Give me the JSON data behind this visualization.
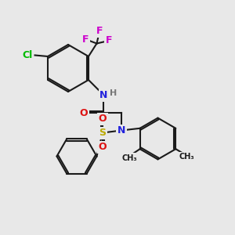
{
  "background_color": "#e8e8e8",
  "bond_color": "#1a1a1a",
  "bond_width": 1.5,
  "atom_colors": {
    "F": "#cc00cc",
    "Cl": "#00bb00",
    "N": "#2222dd",
    "O": "#dd1111",
    "S": "#bbaa00",
    "H": "#777777",
    "C": "#1a1a1a"
  },
  "dbo": 0.07
}
